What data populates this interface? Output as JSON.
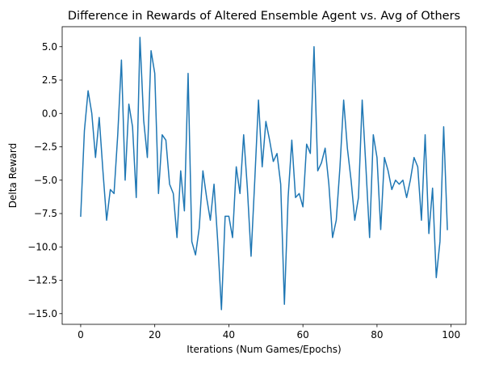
{
  "chart_data": {
    "type": "line",
    "title": "Difference in Rewards of Altered Ensemble Agent vs. Avg of Others",
    "xlabel": "Iterations (Num Games/Epochs)",
    "ylabel": "Delta Reward",
    "xlim": [
      -5,
      104
    ],
    "ylim": [
      -15.8,
      6.5
    ],
    "xticks": [
      0,
      20,
      40,
      60,
      80,
      100
    ],
    "yticks": [
      5.0,
      2.5,
      0.0,
      -2.5,
      -5.0,
      -7.5,
      -10.0,
      -12.5,
      -15.0
    ],
    "ytick_labels": [
      "5.0",
      "2.5",
      "0.0",
      "−2.5",
      "−5.0",
      "−7.5",
      "−10.0",
      "−12.5",
      "−15.0"
    ],
    "grid": false,
    "series": [
      {
        "color": "#1f77b4",
        "x": [
          0,
          1,
          2,
          3,
          4,
          5,
          6,
          7,
          8,
          9,
          10,
          11,
          12,
          13,
          14,
          15,
          16,
          17,
          18,
          19,
          20,
          21,
          22,
          23,
          24,
          25,
          26,
          27,
          28,
          29,
          30,
          31,
          32,
          33,
          34,
          35,
          36,
          37,
          38,
          39,
          40,
          41,
          42,
          43,
          44,
          45,
          46,
          47,
          48,
          49,
          50,
          51,
          52,
          53,
          54,
          55,
          56,
          57,
          58,
          59,
          60,
          61,
          62,
          63,
          64,
          65,
          66,
          67,
          68,
          69,
          70,
          71,
          72,
          73,
          74,
          75,
          76,
          77,
          78,
          79,
          80,
          81,
          82,
          83,
          84,
          85,
          86,
          87,
          88,
          89,
          90,
          91,
          92,
          93,
          94,
          95,
          96,
          97,
          98,
          99
        ],
        "values": [
          -7.7,
          -1.3,
          1.7,
          0.0,
          -3.3,
          -0.3,
          -4.3,
          -8.0,
          -5.7,
          -6.0,
          -1.6,
          4.0,
          -5.0,
          0.7,
          -1.0,
          -6.3,
          5.7,
          -0.5,
          -3.3,
          4.7,
          3.0,
          -6.0,
          -1.6,
          -2.0,
          -5.3,
          -6.0,
          -9.3,
          -4.3,
          -7.3,
          3.0,
          -9.6,
          -10.6,
          -8.6,
          -4.3,
          -6.3,
          -8.0,
          -5.3,
          -9.6,
          -14.7,
          -7.7,
          -7.7,
          -9.3,
          -4.0,
          -6.0,
          -1.6,
          -5.6,
          -10.7,
          -5.0,
          1.0,
          -4.0,
          -0.6,
          -2.0,
          -3.6,
          -3.0,
          -5.3,
          -14.3,
          -6.3,
          -2.0,
          -6.3,
          -6.0,
          -7.0,
          -2.3,
          -3.0,
          5.0,
          -4.3,
          -3.7,
          -2.6,
          -5.3,
          -9.3,
          -8.0,
          -4.0,
          1.0,
          -2.6,
          -5.0,
          -8.0,
          -6.3,
          1.0,
          -4.0,
          -9.3,
          -1.6,
          -3.3,
          -8.7,
          -3.3,
          -4.3,
          -5.7,
          -5.0,
          -5.3,
          -5.0,
          -6.3,
          -5.0,
          -3.3,
          -4.0,
          -8.0,
          -1.6,
          -9.0,
          -5.6,
          -12.3,
          -9.6,
          -1.0,
          -8.7
        ]
      }
    ]
  }
}
